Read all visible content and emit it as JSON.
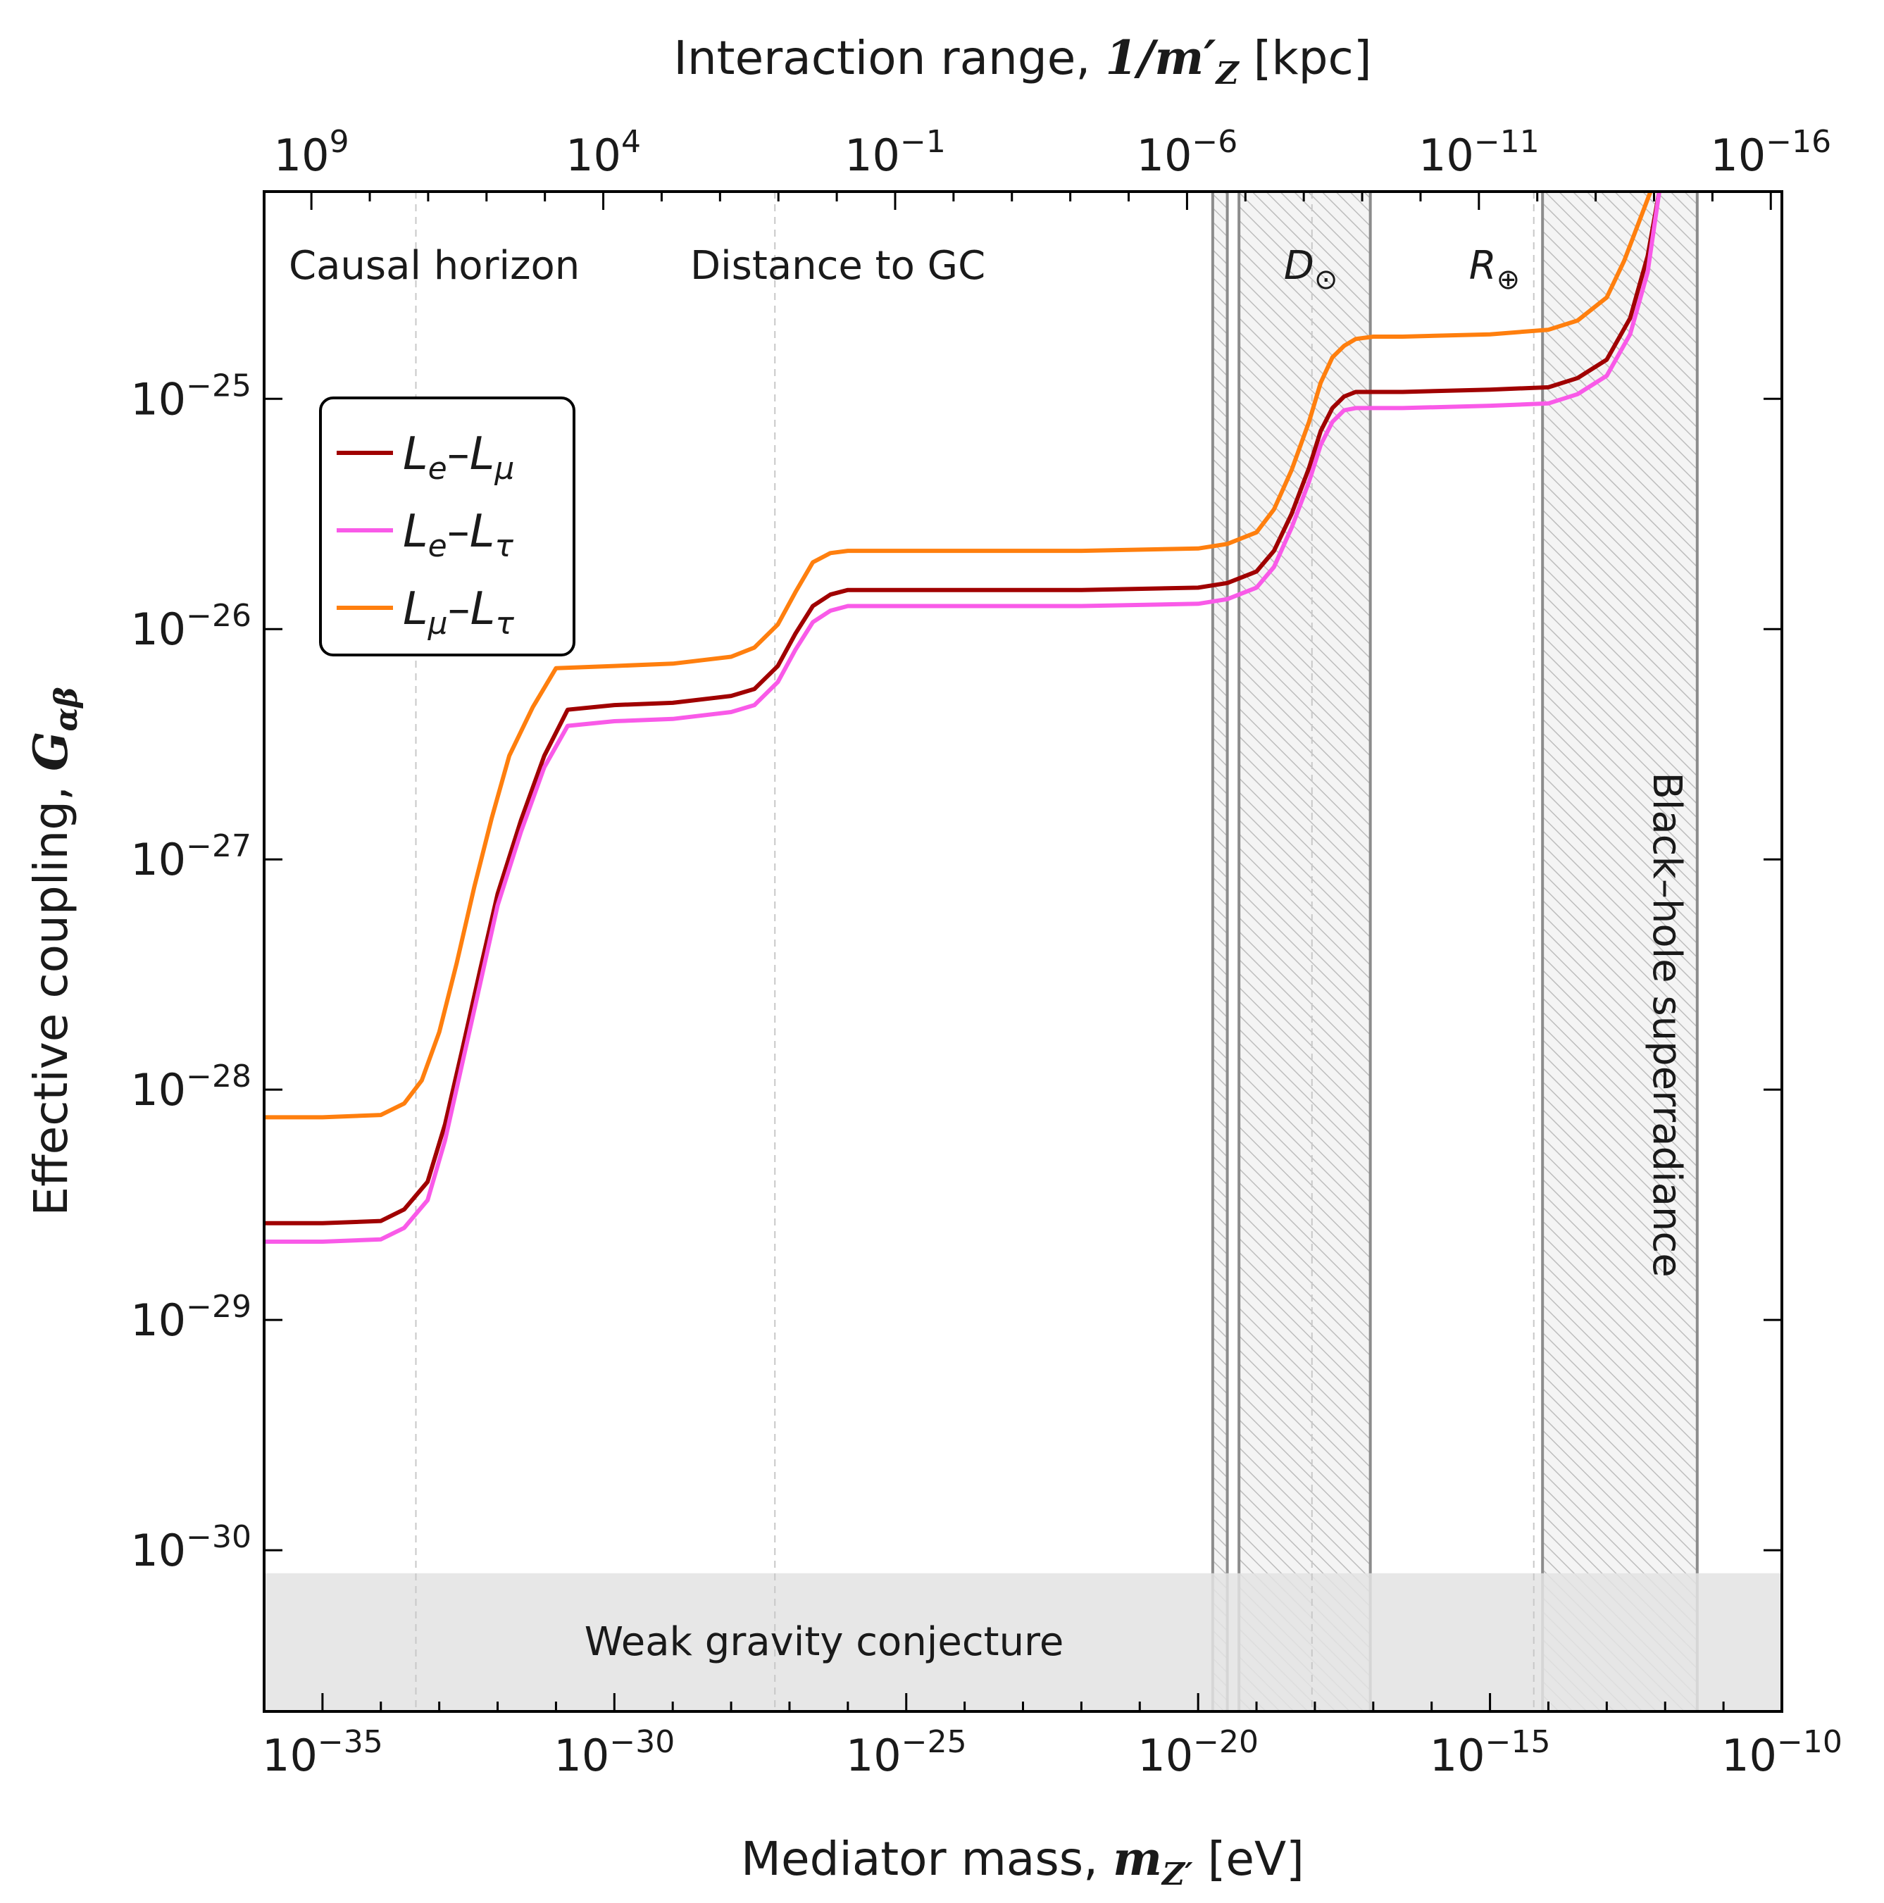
{
  "chart_data": {
    "type": "line",
    "title": "",
    "xlabel": {
      "text": "Mediator mass, ",
      "symbol": "m",
      "sub": "Z′",
      "unit": " [eV]"
    },
    "ylabel": {
      "text": "Effective coupling, ",
      "symbol": "G",
      "sub": "αβ"
    },
    "x2label": {
      "text": "Interaction range, ",
      "symbol": "1/m′",
      "sub": "Z",
      "unit": " [kpc]"
    },
    "xscale": "log",
    "yscale": "log",
    "xlim_log10": [
      -36,
      -10
    ],
    "ylim_log10": [
      -30.7,
      -24.1
    ],
    "x_ticks": [
      {
        "log10": -35,
        "base": "10",
        "exp": "−35"
      },
      {
        "log10": -30,
        "base": "10",
        "exp": "−30"
      },
      {
        "log10": -25,
        "base": "10",
        "exp": "−25"
      },
      {
        "log10": -20,
        "base": "10",
        "exp": "−20"
      },
      {
        "log10": -15,
        "base": "10",
        "exp": "−15"
      },
      {
        "log10": -10,
        "base": "10",
        "exp": "−10"
      }
    ],
    "y_ticks": [
      {
        "log10": -30,
        "base": "10",
        "exp": "−30"
      },
      {
        "log10": -29,
        "base": "10",
        "exp": "−29"
      },
      {
        "log10": -28,
        "base": "10",
        "exp": "−28"
      },
      {
        "log10": -27,
        "base": "10",
        "exp": "−27"
      },
      {
        "log10": -26,
        "base": "10",
        "exp": "−26"
      },
      {
        "log10": -25,
        "base": "10",
        "exp": "−25"
      }
    ],
    "x2_ticks": [
      {
        "range_log10": 9,
        "base": "10",
        "exp": "9"
      },
      {
        "range_log10": 4,
        "base": "10",
        "exp": "4"
      },
      {
        "range_log10": -1,
        "base": "10",
        "exp": "−1"
      },
      {
        "range_log10": -6,
        "base": "10",
        "exp": "−6"
      },
      {
        "range_log10": -11,
        "base": "10",
        "exp": "−11"
      },
      {
        "range_log10": -16,
        "base": "10",
        "exp": "−16"
      }
    ],
    "x2_relation": "log10(range/kpc) = -26.19 - log10(m/eV)",
    "series": [
      {
        "name": "Le–Lμ",
        "label": {
          "a": "L",
          "asub": "e",
          "b": "L",
          "bsub": "μ"
        },
        "color": "#a00000",
        "x_log10": [
          -36,
          -35,
          -34,
          -33.6,
          -33.2,
          -32.9,
          -32.6,
          -32.3,
          -32.0,
          -31.6,
          -31.2,
          -30.8,
          -30.0,
          -29.0,
          -28.0,
          -27.6,
          -27.2,
          -26.9,
          -26.6,
          -26.3,
          -26.0,
          -24.0,
          -22.0,
          -20.0,
          -19.5,
          -19.0,
          -18.7,
          -18.4,
          -18.1,
          -17.9,
          -17.7,
          -17.5,
          -17.3,
          -17.0,
          -16.5,
          -15.0,
          -14.0,
          -13.5,
          -13.0,
          -12.6,
          -12.3,
          -12.1
        ],
        "y_log10": [
          -28.58,
          -28.58,
          -28.57,
          -28.52,
          -28.4,
          -28.15,
          -27.82,
          -27.48,
          -27.15,
          -26.83,
          -26.55,
          -26.35,
          -26.33,
          -26.32,
          -26.29,
          -26.26,
          -26.16,
          -26.02,
          -25.9,
          -25.85,
          -25.83,
          -25.83,
          -25.83,
          -25.82,
          -25.8,
          -25.75,
          -25.66,
          -25.5,
          -25.3,
          -25.14,
          -25.04,
          -24.99,
          -24.97,
          -24.97,
          -24.97,
          -24.96,
          -24.95,
          -24.91,
          -24.83,
          -24.65,
          -24.38,
          -24.1
        ]
      },
      {
        "name": "Le–Lτ",
        "label": {
          "a": "L",
          "asub": "e",
          "b": "L",
          "bsub": "τ"
        },
        "color": "#f95ae8",
        "x_log10": [
          -36,
          -35,
          -34,
          -33.6,
          -33.2,
          -32.9,
          -32.6,
          -32.3,
          -32.0,
          -31.6,
          -31.2,
          -30.8,
          -30.0,
          -29.0,
          -28.0,
          -27.6,
          -27.2,
          -26.9,
          -26.6,
          -26.3,
          -26.0,
          -24.0,
          -22.0,
          -20.0,
          -19.5,
          -19.0,
          -18.7,
          -18.4,
          -18.1,
          -17.9,
          -17.7,
          -17.5,
          -17.3,
          -17.0,
          -16.5,
          -15.0,
          -14.0,
          -13.5,
          -13.0,
          -12.6,
          -12.3,
          -12.1
        ],
        "y_log10": [
          -28.66,
          -28.66,
          -28.65,
          -28.6,
          -28.48,
          -28.22,
          -27.88,
          -27.54,
          -27.2,
          -26.88,
          -26.6,
          -26.42,
          -26.4,
          -26.39,
          -26.36,
          -26.33,
          -26.23,
          -26.09,
          -25.97,
          -25.92,
          -25.9,
          -25.9,
          -25.9,
          -25.89,
          -25.87,
          -25.82,
          -25.73,
          -25.56,
          -25.36,
          -25.2,
          -25.1,
          -25.05,
          -25.04,
          -25.04,
          -25.04,
          -25.03,
          -25.02,
          -24.98,
          -24.9,
          -24.72,
          -24.45,
          -24.1
        ]
      },
      {
        "name": "Lμ–Lτ",
        "label": {
          "a": "L",
          "asub": "μ",
          "b": "L",
          "bsub": "τ"
        },
        "color": "#ff7f0e",
        "x_log10": [
          -36,
          -35,
          -34,
          -33.6,
          -33.3,
          -33.0,
          -32.7,
          -32.4,
          -32.1,
          -31.8,
          -31.4,
          -31.0,
          -30.0,
          -29.0,
          -28.0,
          -27.6,
          -27.2,
          -26.9,
          -26.6,
          -26.3,
          -26.0,
          -24.0,
          -22.0,
          -20.0,
          -19.5,
          -19.0,
          -18.7,
          -18.4,
          -18.1,
          -17.9,
          -17.7,
          -17.5,
          -17.3,
          -17.0,
          -16.5,
          -15.0,
          -14.0,
          -13.5,
          -13.0,
          -12.7,
          -12.4,
          -12.25
        ],
        "y_log10": [
          -28.12,
          -28.12,
          -28.11,
          -28.06,
          -27.96,
          -27.75,
          -27.45,
          -27.12,
          -26.82,
          -26.55,
          -26.34,
          -26.17,
          -26.16,
          -26.15,
          -26.12,
          -26.08,
          -25.98,
          -25.84,
          -25.71,
          -25.67,
          -25.66,
          -25.66,
          -25.66,
          -25.65,
          -25.63,
          -25.58,
          -25.48,
          -25.31,
          -25.1,
          -24.93,
          -24.82,
          -24.77,
          -24.74,
          -24.73,
          -24.73,
          -24.72,
          -24.7,
          -24.66,
          -24.56,
          -24.4,
          -24.2,
          -24.1
        ]
      }
    ],
    "vertical_markers": [
      {
        "label": "Causal horizon",
        "x_log10": -33.4
      },
      {
        "label": "Distance to GC",
        "x_log10": -27.25
      },
      {
        "label_sym": "D",
        "label_sub": "⊙",
        "x_log10": -18.05
      },
      {
        "label_sym": "R",
        "label_sub": "⊕",
        "x_log10": -14.25
      }
    ],
    "shaded_regions": [
      {
        "label": "",
        "x_log10": [
          -19.75,
          -19.5
        ],
        "hatched": true
      },
      {
        "label": "",
        "x_log10": [
          -19.3,
          -17.05
        ],
        "hatched": true
      },
      {
        "label": "Black–hole superradiance",
        "x_log10": [
          -14.1,
          -11.45
        ],
        "hatched": true
      },
      {
        "label": "Weak gravity conjecture",
        "y_log10_max": -30.1,
        "hatched": false
      }
    ],
    "legend_position": "upper-left",
    "colors": {
      "wgc_fill": "#e3e3e3",
      "band_edge": "#8c8c8c",
      "hatch": "#bdbdbd",
      "marker_line": "#c8c8c8"
    }
  }
}
